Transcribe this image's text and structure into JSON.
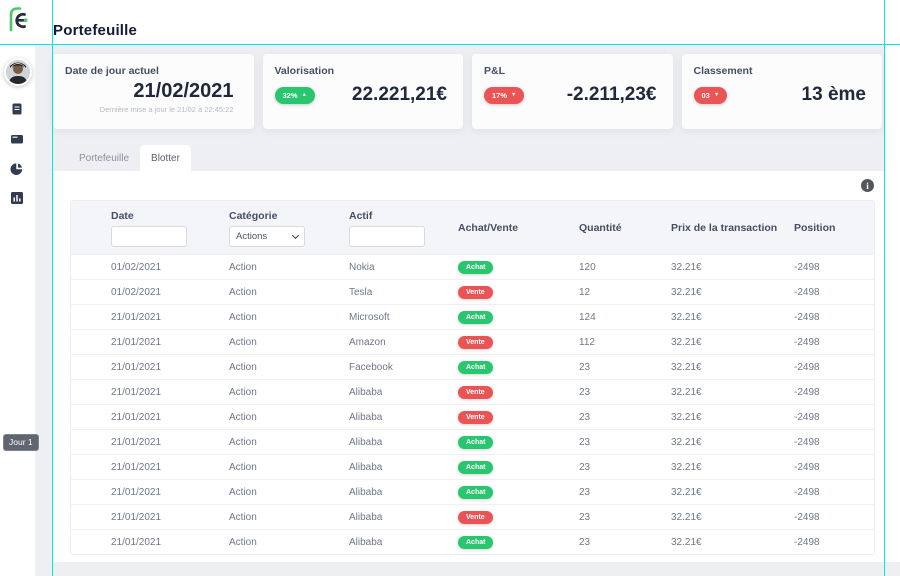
{
  "app": {
    "title": "Portefeuille",
    "day_badge": "Jour 1"
  },
  "sidebar": {
    "icons": [
      "journal-icon",
      "wallet-icon",
      "pie-chart-icon",
      "bar-chart-icon"
    ]
  },
  "cards": {
    "date": {
      "label": "Date de jour actuel",
      "value": "21/02/2021",
      "subtitle": "Dernière mise a jour le 21/02 à 22:45:22"
    },
    "valorisation": {
      "label": "Valorisation",
      "badge": "32%",
      "arrow": "▲",
      "trend": "up",
      "value": "22.221,21€"
    },
    "pnl": {
      "label": "P&L",
      "badge": "17%",
      "arrow": "▼",
      "trend": "down",
      "value": "-2.211,23€"
    },
    "classement": {
      "label": "Classement",
      "badge": "03",
      "arrow": "▼",
      "trend": "down",
      "value": "13 ème"
    }
  },
  "tabs": [
    {
      "label": "Portefeuille",
      "active": false
    },
    {
      "label": "Blotter",
      "active": true
    }
  ],
  "info_icon": "i",
  "table": {
    "columns": [
      "Date",
      "Catégorie",
      "Actif",
      "Achat/Vente",
      "Quantité",
      "Prix de la transaction",
      "Position"
    ],
    "filters": {
      "date_value": "",
      "categorie_selected": "Actions",
      "actif_value": ""
    },
    "rows": [
      {
        "date": "01/02/2021",
        "categorie": "Action",
        "actif": "Nokia",
        "side": "Achat",
        "quantite": "120",
        "prix": "32.21€",
        "position": "-2498"
      },
      {
        "date": "01/02/2021",
        "categorie": "Action",
        "actif": "Tesla",
        "side": "Vente",
        "quantite": "12",
        "prix": "32.21€",
        "position": "-2498"
      },
      {
        "date": "21/01/2021",
        "categorie": "Action",
        "actif": "Microsoft",
        "side": "Achat",
        "quantite": "124",
        "prix": "32.21€",
        "position": "-2498"
      },
      {
        "date": "21/01/2021",
        "categorie": "Action",
        "actif": "Amazon",
        "side": "Vente",
        "quantite": "112",
        "prix": "32.21€",
        "position": "-2498"
      },
      {
        "date": "21/01/2021",
        "categorie": "Action",
        "actif": "Facebook",
        "side": "Achat",
        "quantite": "23",
        "prix": "32.21€",
        "position": "-2498"
      },
      {
        "date": "21/01/2021",
        "categorie": "Action",
        "actif": "Alibaba",
        "side": "Vente",
        "quantite": "23",
        "prix": "32.21€",
        "position": "-2498"
      },
      {
        "date": "21/01/2021",
        "categorie": "Action",
        "actif": "Alibaba",
        "side": "Vente",
        "quantite": "23",
        "prix": "32.21€",
        "position": "-2498"
      },
      {
        "date": "21/01/2021",
        "categorie": "Action",
        "actif": "Alibaba",
        "side": "Achat",
        "quantite": "23",
        "prix": "32.21€",
        "position": "-2498"
      },
      {
        "date": "21/01/2021",
        "categorie": "Action",
        "actif": "Alibaba",
        "side": "Achat",
        "quantite": "23",
        "prix": "32.21€",
        "position": "-2498"
      },
      {
        "date": "21/01/2021",
        "categorie": "Action",
        "actif": "Alibaba",
        "side": "Achat",
        "quantite": "23",
        "prix": "32.21€",
        "position": "-2498"
      },
      {
        "date": "21/01/2021",
        "categorie": "Action",
        "actif": "Alibaba",
        "side": "Vente",
        "quantite": "23",
        "prix": "32.21€",
        "position": "-2498"
      },
      {
        "date": "21/01/2021",
        "categorie": "Action",
        "actif": "Alibaba",
        "side": "Achat",
        "quantite": "23",
        "prix": "32.21€",
        "position": "-2498"
      }
    ]
  },
  "colors": {
    "green": "#28c76f",
    "red": "#ea5455",
    "guide_cyan": "#00e5f2",
    "navy": "#1c2438",
    "page_bg": "#edeff2"
  }
}
